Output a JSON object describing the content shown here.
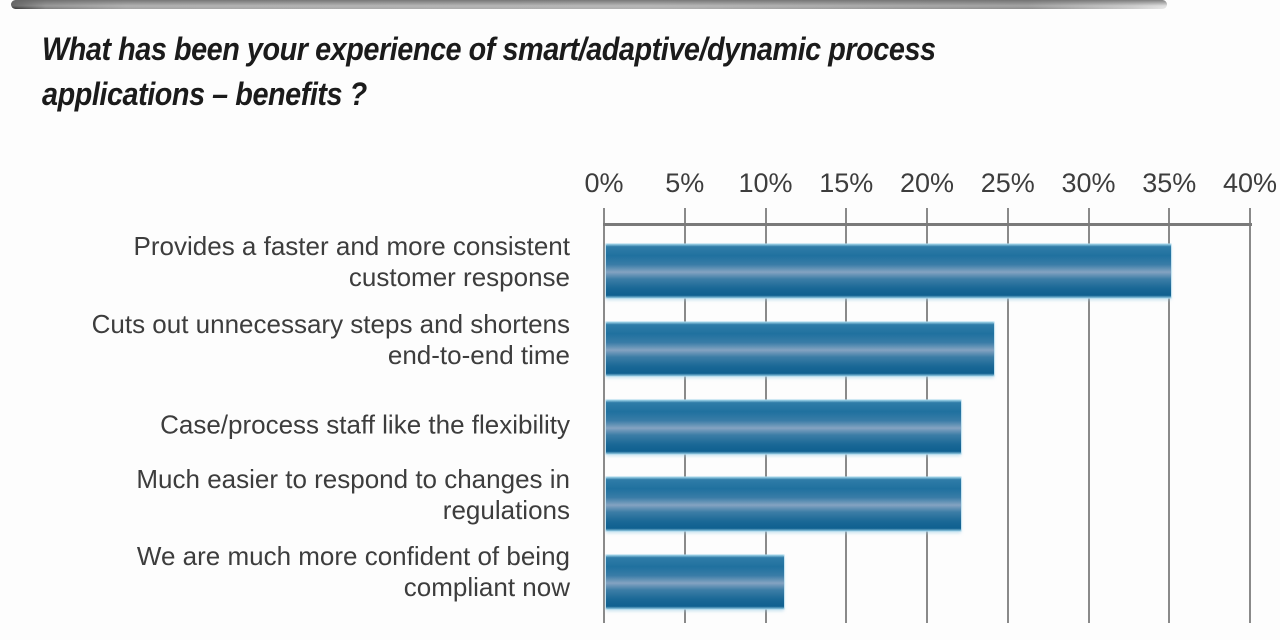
{
  "title": {
    "lines": [
      "What has been your experience of smart/adaptive/dynamic process",
      "applications – benefits ?"
    ],
    "full": "What has been your experience of smart/adaptive/dynamic process applications – benefits ?"
  },
  "chart_data": {
    "type": "bar",
    "orientation": "horizontal",
    "title": "What has been your experience of smart/adaptive/dynamic process applications – benefits ?",
    "categories": [
      "Provides a faster and more consistent customer response",
      "Cuts out unnecessary steps and shortens end-to-end time",
      "Case/process staff like the flexibility",
      "Much easier to respond to changes in regulations",
      "We are much more confident of being compliant now"
    ],
    "category_lines": [
      [
        "Provides a faster and more consistent",
        "customer response"
      ],
      [
        "Cuts out unnecessary steps and shortens",
        "end-to-end time"
      ],
      [
        "Case/process staff like the flexibility"
      ],
      [
        "Much easier to respond to changes in",
        "regulations"
      ],
      [
        "We are much more confident of being",
        "compliant now"
      ]
    ],
    "values": [
      35,
      24,
      22,
      22,
      11
    ],
    "unit": "%",
    "x_tick_labels": [
      "0%",
      "5%",
      "10%",
      "15%",
      "20%",
      "25%",
      "30%",
      "35%",
      "40%"
    ],
    "xlim": [
      0,
      40
    ],
    "grid": true,
    "legend": "none",
    "xlabel": "",
    "ylabel": ""
  },
  "colors": {
    "bar_dark": "#20719f",
    "bar_mid_light": "#84a3c1",
    "bar_bottom_dark": "#0f6090",
    "bar_soft_edge": "#9fd3e8",
    "gridline": "#8a8a8a",
    "axis_line": "#7a7a7a",
    "title_text": "#1b1b1b",
    "label_text": "#3d3d3d",
    "background": "#fdfdfd"
  }
}
